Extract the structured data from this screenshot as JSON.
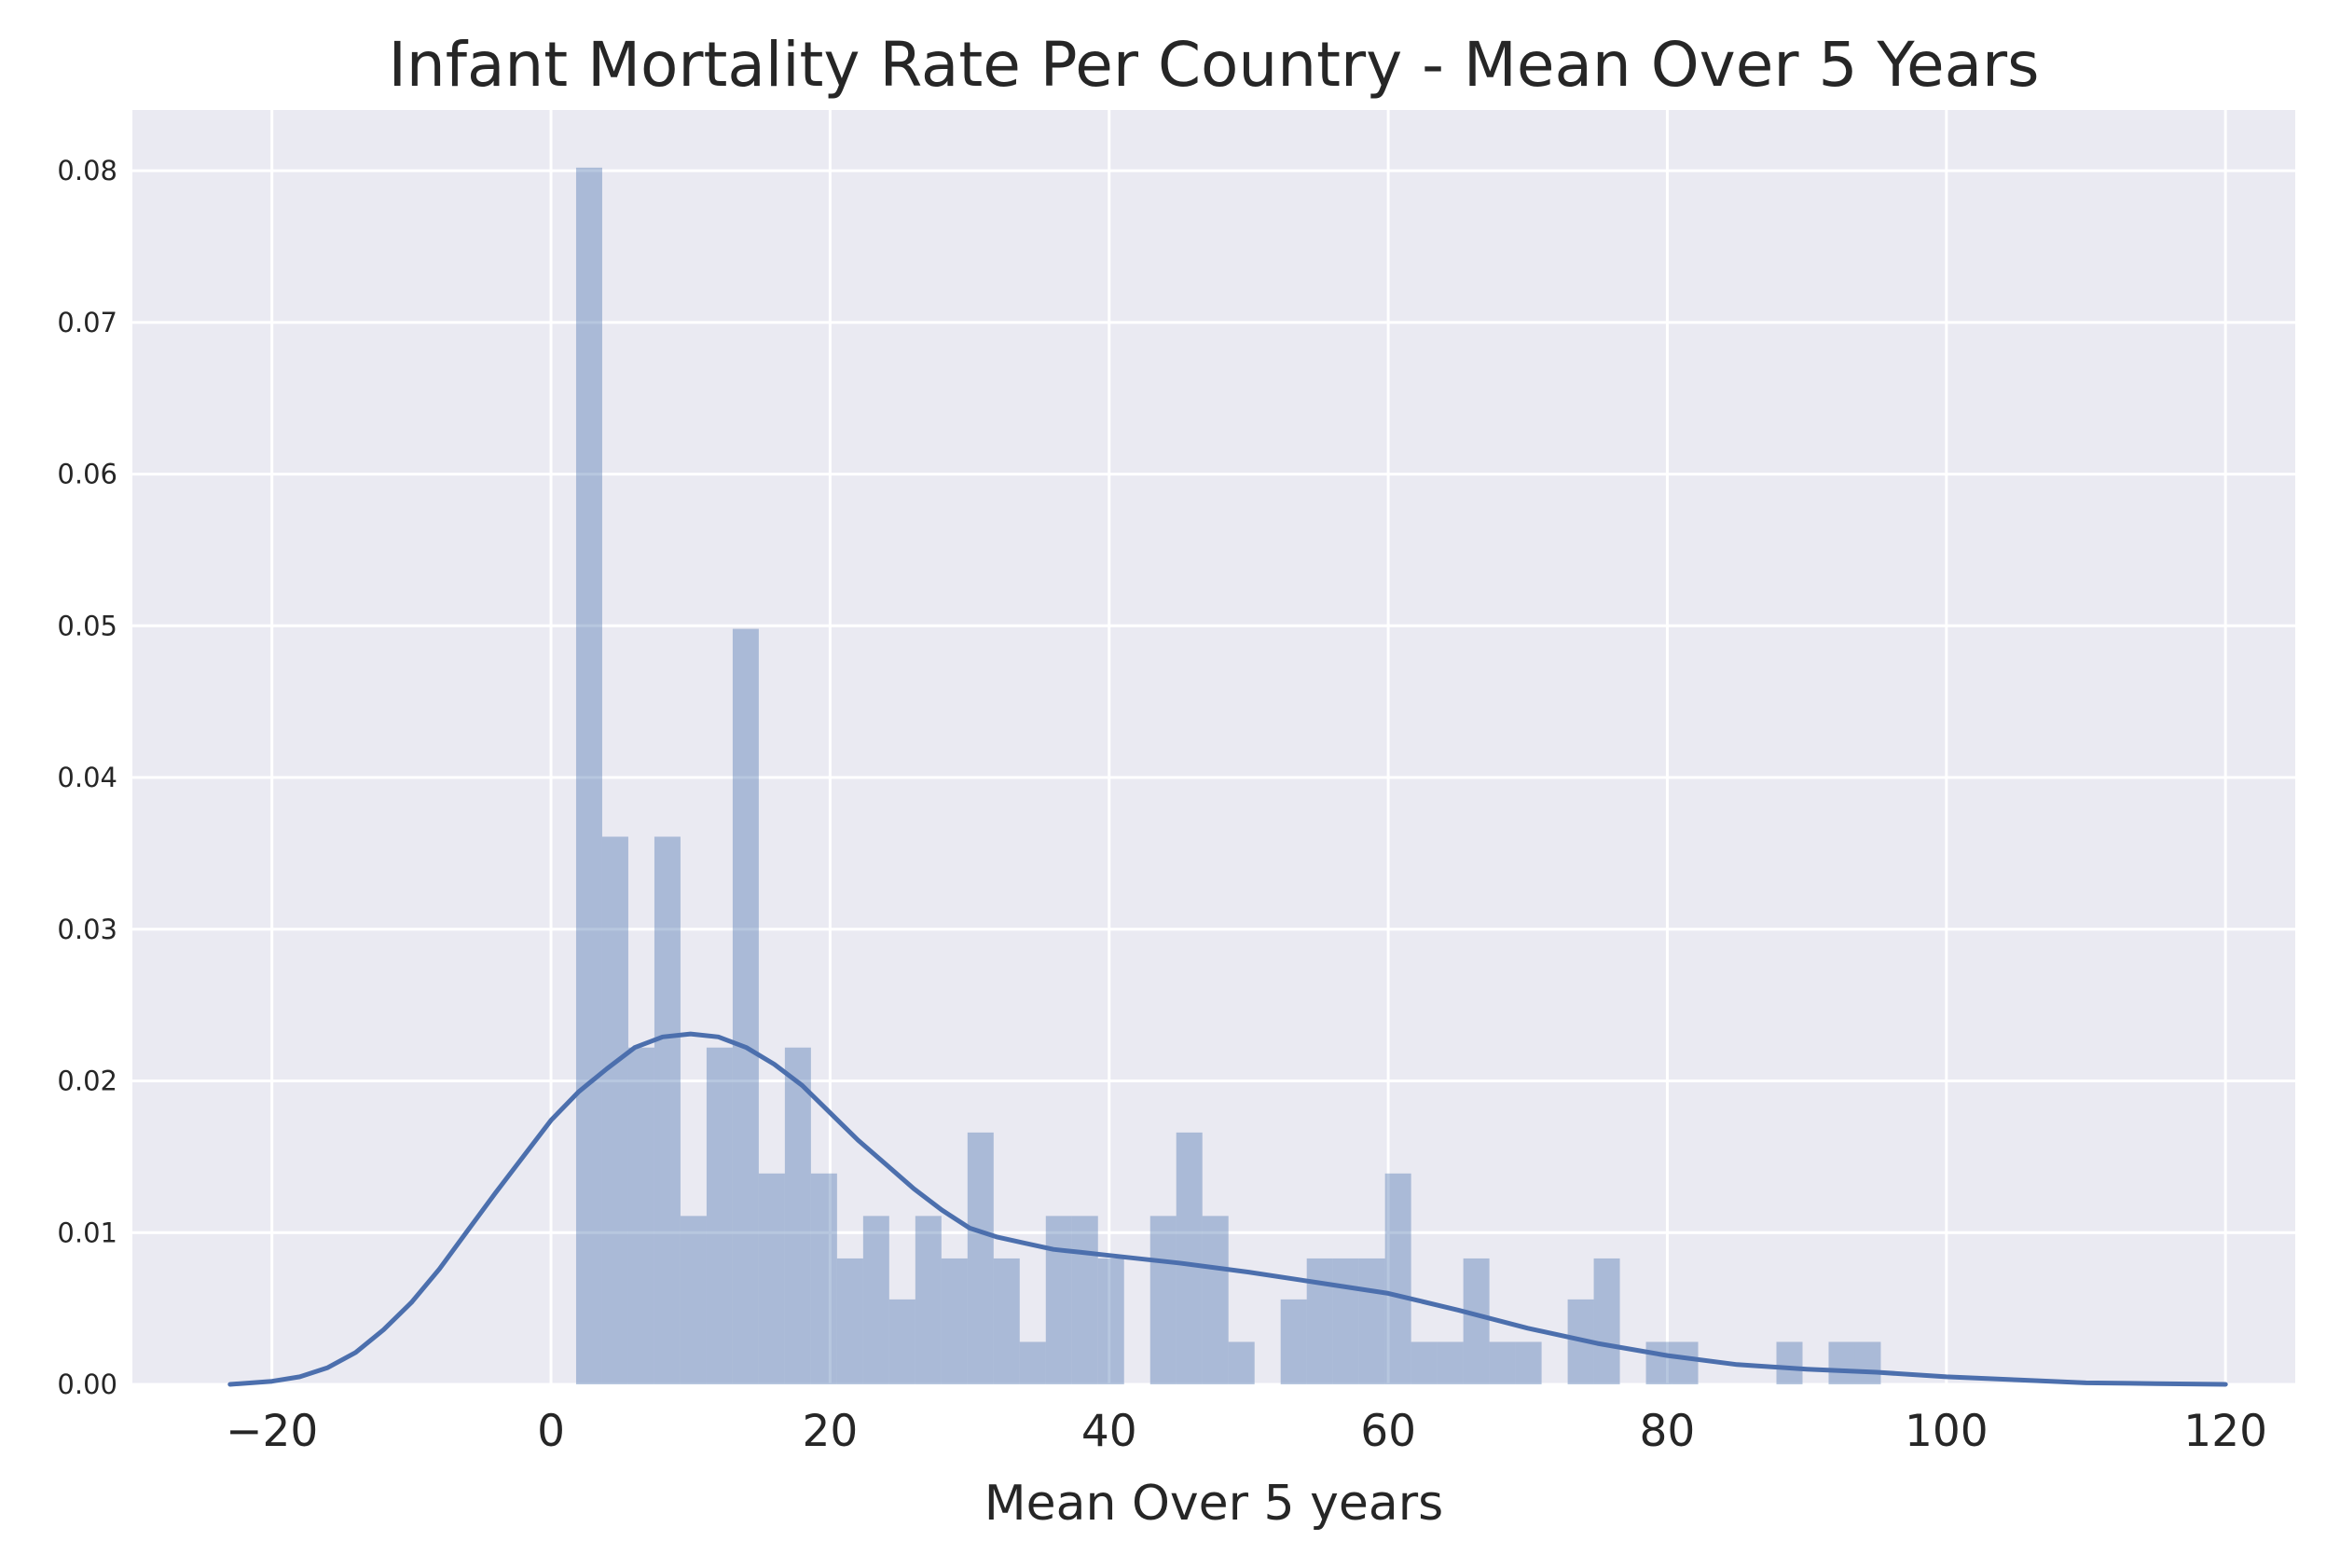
{
  "chart_data": {
    "type": "histogram",
    "title": "Infant Mortality Rate Per Country - Mean Over 5 Years",
    "xlabel": "Mean Over 5 years",
    "ylabel": "",
    "xlim": [
      -30,
      125
    ],
    "ylim": [
      0,
      0.084
    ],
    "x_ticks": [
      -20,
      0,
      20,
      40,
      60,
      80,
      100,
      120
    ],
    "x_tick_labels": [
      "−20",
      "0",
      "20",
      "40",
      "60",
      "80",
      "100",
      "120"
    ],
    "y_ticks": [
      0,
      0.01,
      0.02,
      0.03,
      0.04,
      0.05,
      0.06,
      0.07,
      0.08
    ],
    "y_tick_labels": [
      "0.00",
      "0.01",
      "0.02",
      "0.03",
      "0.04",
      "0.05",
      "0.06",
      "0.07",
      "0.08"
    ],
    "grid": true,
    "background": "#eaeaf2",
    "bar_color": "#4c72b0",
    "bar_opacity": 0.4,
    "line_color": "#4c6fad",
    "bins": {
      "start": 1.8,
      "width": 1.87,
      "values": [
        0.0802,
        0.0361,
        0.0222,
        0.0361,
        0.0111,
        0.0222,
        0.0498,
        0.0139,
        0.0222,
        0.0139,
        0.0083,
        0.0111,
        0.0056,
        0.0111,
        0.0083,
        0.0166,
        0.0083,
        0.0028,
        0.0111,
        0.0111,
        0.0083,
        0,
        0.0111,
        0.0166,
        0.0111,
        0.0028,
        0,
        0.0056,
        0.0083,
        0.0083,
        0.0083,
        0.0139,
        0.0028,
        0.0028,
        0.0083,
        0.0028,
        0.0028,
        0,
        0.0056,
        0.0083,
        0,
        0.0028,
        0.0028,
        0,
        0,
        0,
        0.0028,
        0,
        0.0028,
        0.0028
      ]
    },
    "kde": {
      "x": [
        -23,
        -20,
        -18,
        -16,
        -14,
        -12,
        -10,
        -8,
        -6,
        -4,
        -2,
        0,
        2,
        4,
        6,
        8,
        10,
        12,
        14,
        16,
        18,
        20,
        22,
        24,
        26,
        28,
        30,
        32,
        34,
        36,
        38,
        40,
        45,
        50,
        55,
        60,
        65,
        70,
        75,
        80,
        85,
        90,
        95,
        100,
        105,
        110,
        115,
        120
      ],
      "y": [
        0,
        0.0002,
        0.0005,
        0.0011,
        0.0021,
        0.0036,
        0.0054,
        0.0076,
        0.0101,
        0.0126,
        0.015,
        0.0174,
        0.0193,
        0.0208,
        0.0222,
        0.0229,
        0.0231,
        0.0229,
        0.0222,
        0.0211,
        0.0197,
        0.0179,
        0.0161,
        0.0145,
        0.0129,
        0.0115,
        0.0103,
        0.0097,
        0.0093,
        0.0089,
        0.0087,
        0.0085,
        0.008,
        0.0074,
        0.0067,
        0.006,
        0.0049,
        0.0037,
        0.0027,
        0.0019,
        0.0013,
        0.001,
        0.0008,
        0.0005,
        0.0003,
        0.0001,
        5e-05,
        0
      ]
    }
  }
}
